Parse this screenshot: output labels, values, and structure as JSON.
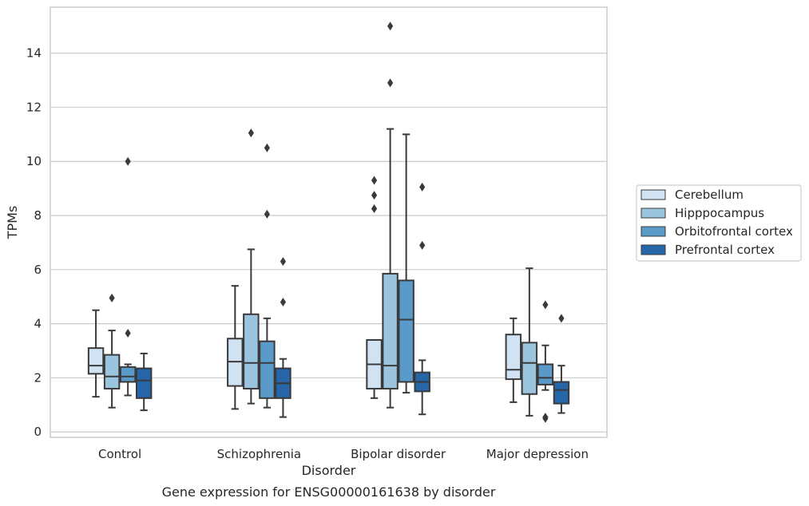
{
  "caption": "Gene expression for ENSG00000161638 by disorder",
  "chart_data": {
    "type": "box",
    "xlabel": "Disorder",
    "ylabel": "TPMs",
    "ylim": [
      -0.2,
      15.7
    ],
    "yticks": [
      0,
      2,
      4,
      6,
      8,
      10,
      12,
      14
    ],
    "grid": true,
    "legend_position": "right",
    "categories": [
      "Control",
      "Schizophrenia",
      "Bipolar disorder",
      "Major depression"
    ],
    "series": [
      {
        "name": "Cerebellum",
        "color": "#d1e2f2",
        "boxes": [
          {
            "whislo": 1.3,
            "q1": 2.15,
            "med": 2.45,
            "q3": 3.1,
            "whishi": 4.5,
            "fliers": []
          },
          {
            "whislo": 0.85,
            "q1": 1.7,
            "med": 2.6,
            "q3": 3.45,
            "whishi": 5.4,
            "fliers": []
          },
          {
            "whislo": 1.25,
            "q1": 1.6,
            "med": 2.5,
            "q3": 3.4,
            "whishi": 3.4,
            "fliers": [
              8.25,
              8.75,
              9.3
            ]
          },
          {
            "whislo": 1.1,
            "q1": 1.95,
            "med": 2.3,
            "q3": 3.6,
            "whishi": 4.2,
            "fliers": []
          }
        ]
      },
      {
        "name": "Hipppocampus",
        "color": "#9bc5df",
        "boxes": [
          {
            "whislo": 0.9,
            "q1": 1.6,
            "med": 2.05,
            "q3": 2.85,
            "whishi": 3.75,
            "fliers": [
              4.95
            ]
          },
          {
            "whislo": 1.05,
            "q1": 1.6,
            "med": 2.55,
            "q3": 4.35,
            "whishi": 6.75,
            "fliers": [
              11.05
            ]
          },
          {
            "whislo": 0.9,
            "q1": 1.6,
            "med": 2.45,
            "q3": 5.85,
            "whishi": 11.2,
            "fliers": [
              12.9,
              15.0
            ]
          },
          {
            "whislo": 0.6,
            "q1": 1.4,
            "med": 2.55,
            "q3": 3.3,
            "whishi": 6.05,
            "fliers": []
          }
        ]
      },
      {
        "name": "Orbitofrontal cortex",
        "color": "#5a9ac8",
        "boxes": [
          {
            "whislo": 1.35,
            "q1": 1.85,
            "med": 2.05,
            "q3": 2.4,
            "whishi": 2.5,
            "fliers": [
              3.65,
              10.0
            ]
          },
          {
            "whislo": 0.9,
            "q1": 1.25,
            "med": 2.55,
            "q3": 3.35,
            "whishi": 4.2,
            "fliers": [
              8.05,
              10.5
            ]
          },
          {
            "whislo": 1.45,
            "q1": 1.85,
            "med": 4.15,
            "q3": 5.6,
            "whishi": 11.0,
            "fliers": []
          },
          {
            "whislo": 1.55,
            "q1": 1.75,
            "med": 2.0,
            "q3": 2.5,
            "whishi": 3.2,
            "fliers": [
              0.5,
              0.55,
              4.7
            ]
          }
        ]
      },
      {
        "name": "Prefrontal cortex",
        "color": "#2565a8",
        "boxes": [
          {
            "whislo": 0.8,
            "q1": 1.25,
            "med": 1.9,
            "q3": 2.35,
            "whishi": 2.9,
            "fliers": []
          },
          {
            "whislo": 0.55,
            "q1": 1.25,
            "med": 1.8,
            "q3": 2.35,
            "whishi": 2.7,
            "fliers": [
              4.8,
              6.3
            ]
          },
          {
            "whislo": 0.65,
            "q1": 1.5,
            "med": 1.85,
            "q3": 2.2,
            "whishi": 2.65,
            "fliers": [
              6.9,
              9.05
            ]
          },
          {
            "whislo": 0.7,
            "q1": 1.05,
            "med": 1.55,
            "q3": 1.85,
            "whishi": 2.45,
            "fliers": [
              4.2
            ]
          }
        ]
      }
    ]
  }
}
